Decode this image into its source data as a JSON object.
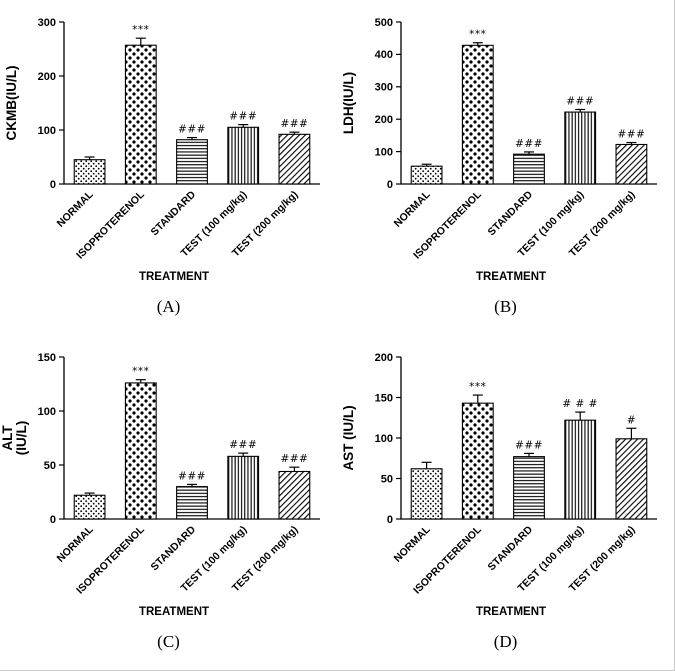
{
  "figure": {
    "background": "#ffffff",
    "border_color": "#c9c9c9",
    "captions": [
      "(A)",
      "(B)",
      "(C)",
      "(D)"
    ]
  },
  "chart_data": [
    {
      "panel": "(A)",
      "type": "bar",
      "title": "",
      "ylabel": "CKMB(IU/L)",
      "ylabel_lines": [
        "CKMB(IU/L)"
      ],
      "xlabel": "TREATMENT",
      "ylim": [
        0,
        300
      ],
      "yticks": [
        0,
        100,
        200,
        300
      ],
      "grid": false,
      "legend": null,
      "categories": [
        "NORMAL",
        "ISOPROTERENOL",
        "STANDARD",
        "TEST (100 mg/kg)",
        "TEST (200 mg/kg)"
      ],
      "values": [
        45,
        257,
        82,
        105,
        92
      ],
      "errors": [
        5,
        13,
        4,
        5,
        4
      ],
      "annotations": [
        "",
        "***",
        "###",
        "###",
        "###"
      ],
      "patterns": [
        "dots-sm",
        "dots",
        "hlines",
        "vlines",
        "diag"
      ]
    },
    {
      "panel": "(B)",
      "type": "bar",
      "title": "",
      "ylabel": "LDH(IU/L)",
      "ylabel_lines": [
        "LDH(IU/L)"
      ],
      "xlabel": "TREATMENT",
      "ylim": [
        0,
        500
      ],
      "yticks": [
        0,
        100,
        200,
        300,
        400,
        500
      ],
      "grid": false,
      "legend": null,
      "categories": [
        "NORMAL",
        "ISOPROTERENOL",
        "STANDARD",
        "TEST (100 mg/kg)",
        "TEST (200 mg/kg)"
      ],
      "values": [
        55,
        428,
        92,
        222,
        122
      ],
      "errors": [
        6,
        8,
        7,
        8,
        6
      ],
      "annotations": [
        "",
        "***",
        "###",
        "###",
        "###"
      ],
      "patterns": [
        "dots-sm",
        "dots",
        "hlines",
        "vlines",
        "diag"
      ]
    },
    {
      "panel": "(C)",
      "type": "bar",
      "title": "",
      "ylabel": "ALT (IU/L)",
      "ylabel_lines": [
        "ALT",
        "(IU/L)"
      ],
      "xlabel": "TREATMENT",
      "ylim": [
        0,
        150
      ],
      "yticks": [
        0,
        50,
        100,
        150
      ],
      "grid": false,
      "legend": null,
      "categories": [
        "NORMAL",
        "ISOPROTERENOL",
        "STANDARD",
        "TEST (100 mg/kg)",
        "TEST (200 mg/kg)"
      ],
      "values": [
        22,
        126,
        30,
        58,
        44
      ],
      "errors": [
        2,
        3,
        2,
        3,
        4
      ],
      "annotations": [
        "",
        "***",
        "###",
        "###",
        "###"
      ],
      "patterns": [
        "dots-sm",
        "dots",
        "hlines",
        "vlines",
        "diag"
      ]
    },
    {
      "panel": "(D)",
      "type": "bar",
      "title": "",
      "ylabel": "AST (IU/L)",
      "ylabel_lines": [
        "AST (IU/L)"
      ],
      "xlabel": "TREATMENT",
      "ylim": [
        0,
        200
      ],
      "yticks": [
        0,
        50,
        100,
        150,
        200
      ],
      "grid": false,
      "legend": null,
      "categories": [
        "NORMAL",
        "ISOPROTERENOL",
        "STANDARD",
        "TEST (100 mg/kg)",
        "TEST (200 mg/kg)"
      ],
      "values": [
        62,
        143,
        77,
        122,
        99
      ],
      "errors": [
        8,
        10,
        4,
        10,
        13
      ],
      "annotations": [
        "",
        "***",
        "###",
        "# # #",
        "#"
      ],
      "patterns": [
        "dots-sm",
        "dots",
        "hlines",
        "vlines",
        "diag"
      ]
    }
  ]
}
